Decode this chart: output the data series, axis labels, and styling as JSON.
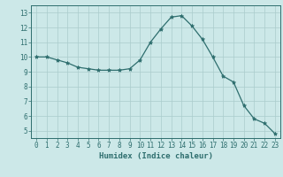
{
  "x": [
    0,
    1,
    2,
    3,
    4,
    5,
    6,
    7,
    8,
    9,
    10,
    11,
    12,
    13,
    14,
    15,
    16,
    17,
    18,
    19,
    20,
    21,
    22,
    23
  ],
  "y": [
    10.0,
    10.0,
    9.8,
    9.6,
    9.3,
    9.2,
    9.1,
    9.1,
    9.1,
    9.2,
    9.8,
    11.0,
    11.9,
    12.7,
    12.8,
    12.1,
    11.2,
    10.0,
    8.7,
    8.3,
    6.7,
    5.8,
    5.5,
    4.8
  ],
  "xlabel": "Humidex (Indice chaleur)",
  "xlim": [
    -0.5,
    23.5
  ],
  "ylim": [
    4.5,
    13.5
  ],
  "yticks": [
    5,
    6,
    7,
    8,
    9,
    10,
    11,
    12,
    13
  ],
  "xticks": [
    0,
    1,
    2,
    3,
    4,
    5,
    6,
    7,
    8,
    9,
    10,
    11,
    12,
    13,
    14,
    15,
    16,
    17,
    18,
    19,
    20,
    21,
    22,
    23
  ],
  "bg_color": "#cce8e8",
  "line_color": "#2e6e6e",
  "grid_color": "#aacccc",
  "label_fontsize": 6.5,
  "tick_fontsize": 5.5
}
